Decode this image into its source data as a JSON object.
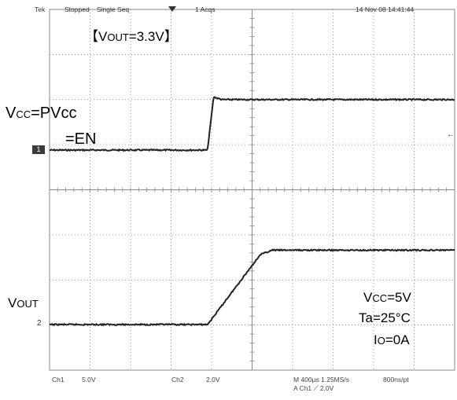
{
  "header": {
    "brand": "Tek",
    "status": "Stopped",
    "mode": "Single Seq",
    "acqs": "1 Acqs",
    "datetime": "14 Nov 08 14:41:44"
  },
  "footer": {
    "ch1_label": "Ch1",
    "ch1_scale": "5.0V",
    "ch2_label": "Ch2",
    "ch2_scale": "2.0V",
    "timebase": "M 400µs 1.25MS/s",
    "record": "800ns/pt",
    "trigger": "A  Ch1  ⟋  2.0V"
  },
  "annotations": {
    "vout_title_prefix": "【V",
    "vout_title_sub": "OUT",
    "vout_title_suffix": "=3.3V】",
    "vcc_prefix": "V",
    "vcc_sub": "CC",
    "vcc_suffix": "=PVcc",
    "en_line": "=EN",
    "vout_prefix": "V",
    "vout_sub": "OUT",
    "cond_vcc_prefix": "V",
    "cond_vcc_sub": "CC",
    "cond_vcc_suffix": "=5V",
    "cond_ta": "Ta=25°C",
    "cond_io_prefix": "I",
    "cond_io_sub": "O",
    "cond_io_suffix": "=0A"
  },
  "markers": {
    "ch1": "1",
    "ch2": "2",
    "right_arrow": "←"
  },
  "chart_data": [
    {
      "type": "line",
      "series_label": "Ch1",
      "volts_per_div": 5.0,
      "x_divs": [
        0,
        3.9,
        4.05,
        4.25,
        10
      ],
      "y_divs_from_marker": [
        0,
        0,
        1.18,
        1.12,
        1.12
      ]
    },
    {
      "type": "line",
      "series_label": "Ch2",
      "volts_per_div": 2.0,
      "x_divs": [
        0,
        3.9,
        5.2,
        5.5,
        10
      ],
      "y_divs_from_marker": [
        0,
        0,
        1.55,
        1.65,
        1.65
      ]
    }
  ],
  "colors": {
    "trace": "#222222",
    "grid": "#8a8a8a",
    "frame": "#888888"
  }
}
